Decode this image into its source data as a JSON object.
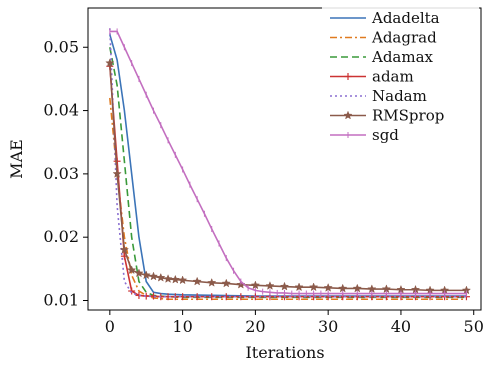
{
  "chart_data": {
    "type": "line",
    "title": "",
    "xlabel": "Iterations",
    "ylabel": "MAE",
    "xlim": [
      -3,
      51
    ],
    "ylim": [
      0.0085,
      0.0562
    ],
    "xticks": [
      0,
      10,
      20,
      30,
      40,
      50
    ],
    "yticks": [
      0.01,
      0.02,
      0.03,
      0.04,
      0.05
    ],
    "xtick_labels": [
      "0",
      "10",
      "20",
      "30",
      "40",
      "50"
    ],
    "ytick_labels": [
      "0.01",
      "0.02",
      "0.03",
      "0.04",
      "0.05"
    ],
    "grid": false,
    "legend_position": "top-right",
    "series": [
      {
        "name": "Adadelta",
        "color": "#3b74b8",
        "dash": "solid",
        "marker": "none",
        "x": [
          0,
          1,
          2,
          3,
          4,
          5,
          6,
          7,
          8,
          10,
          15,
          20,
          30,
          40,
          49
        ],
        "y": [
          0.052,
          0.048,
          0.04,
          0.03,
          0.02,
          0.013,
          0.0113,
          0.0111,
          0.011,
          0.0109,
          0.0108,
          0.0107,
          0.0107,
          0.0107,
          0.0107
        ]
      },
      {
        "name": "Adagrad",
        "color": "#e07b20",
        "dash": "dashdot",
        "marker": "none",
        "x": [
          0,
          1,
          2,
          3,
          4,
          5,
          6,
          8,
          10,
          15,
          20,
          30,
          40,
          49
        ],
        "y": [
          0.042,
          0.03,
          0.02,
          0.014,
          0.0115,
          0.0108,
          0.0104,
          0.0102,
          0.0102,
          0.0102,
          0.0102,
          0.0102,
          0.0102,
          0.0102
        ]
      },
      {
        "name": "Adamax",
        "color": "#3a9a3a",
        "dash": "dashed",
        "marker": "none",
        "x": [
          0,
          1,
          2,
          3,
          4,
          5,
          6,
          8,
          10,
          15,
          20,
          30,
          40,
          49
        ],
        "y": [
          0.05,
          0.044,
          0.032,
          0.02,
          0.013,
          0.0113,
          0.0108,
          0.0106,
          0.0105,
          0.0105,
          0.0105,
          0.0105,
          0.0105,
          0.0105
        ]
      },
      {
        "name": "adam",
        "color": "#cc3333",
        "dash": "solid",
        "marker": "plus",
        "x": [
          0,
          1,
          2,
          3,
          4,
          5,
          6,
          7,
          8,
          9,
          10,
          12,
          14,
          16,
          18,
          20,
          22,
          24,
          26,
          28,
          30,
          32,
          34,
          36,
          38,
          40,
          42,
          44,
          46,
          49
        ],
        "y": [
          0.047,
          0.032,
          0.017,
          0.0115,
          0.0108,
          0.0107,
          0.0107,
          0.0106,
          0.0106,
          0.0106,
          0.0106,
          0.0106,
          0.0106,
          0.0106,
          0.0106,
          0.0106,
          0.0106,
          0.0106,
          0.0106,
          0.0106,
          0.0106,
          0.0106,
          0.0106,
          0.0106,
          0.0106,
          0.0106,
          0.0106,
          0.0106,
          0.0106,
          0.0106
        ]
      },
      {
        "name": "Nadam",
        "color": "#8a6fd1",
        "dash": "dotted",
        "marker": "none",
        "x": [
          0,
          1,
          2,
          3,
          4,
          5,
          6,
          8,
          10,
          15,
          20,
          30,
          40,
          49
        ],
        "y": [
          0.053,
          0.025,
          0.013,
          0.0112,
          0.0108,
          0.0107,
          0.0106,
          0.0106,
          0.0106,
          0.0106,
          0.0106,
          0.0106,
          0.0106,
          0.0106
        ]
      },
      {
        "name": "RMSprop",
        "color": "#8b5a4a",
        "dash": "solid",
        "marker": "star",
        "x": [
          0,
          1,
          2,
          3,
          4,
          5,
          6,
          7,
          8,
          9,
          10,
          12,
          14,
          16,
          18,
          20,
          22,
          24,
          26,
          28,
          30,
          32,
          34,
          36,
          38,
          40,
          42,
          44,
          46,
          49
        ],
        "y": [
          0.0475,
          0.03,
          0.018,
          0.0148,
          0.0143,
          0.014,
          0.0138,
          0.0136,
          0.0134,
          0.0133,
          0.0132,
          0.013,
          0.0128,
          0.0127,
          0.0125,
          0.0124,
          0.0123,
          0.0122,
          0.0121,
          0.0121,
          0.012,
          0.0119,
          0.0119,
          0.0118,
          0.0118,
          0.0117,
          0.0117,
          0.0116,
          0.0116,
          0.0116
        ]
      },
      {
        "name": "sgd",
        "color": "#c36fc0",
        "dash": "solid",
        "marker": "tick",
        "x": [
          0,
          1,
          2,
          3,
          4,
          5,
          6,
          7,
          8,
          9,
          10,
          11,
          12,
          13,
          14,
          15,
          16,
          17,
          18,
          19,
          20,
          21,
          22,
          23,
          24,
          25,
          26,
          27,
          28,
          29,
          30,
          32,
          34,
          36,
          38,
          40,
          42,
          44,
          46,
          49
        ],
        "y": [
          0.0525,
          0.0525,
          0.05,
          0.0475,
          0.045,
          0.0425,
          0.04,
          0.0377,
          0.0353,
          0.033,
          0.0307,
          0.0283,
          0.026,
          0.0237,
          0.0213,
          0.019,
          0.0167,
          0.0147,
          0.013,
          0.012,
          0.0116,
          0.0114,
          0.0113,
          0.0112,
          0.0112,
          0.0111,
          0.0111,
          0.0111,
          0.0111,
          0.0111,
          0.0111,
          0.0111,
          0.0111,
          0.0111,
          0.0111,
          0.0111,
          0.0111,
          0.0111,
          0.0111,
          0.0111
        ]
      }
    ]
  }
}
